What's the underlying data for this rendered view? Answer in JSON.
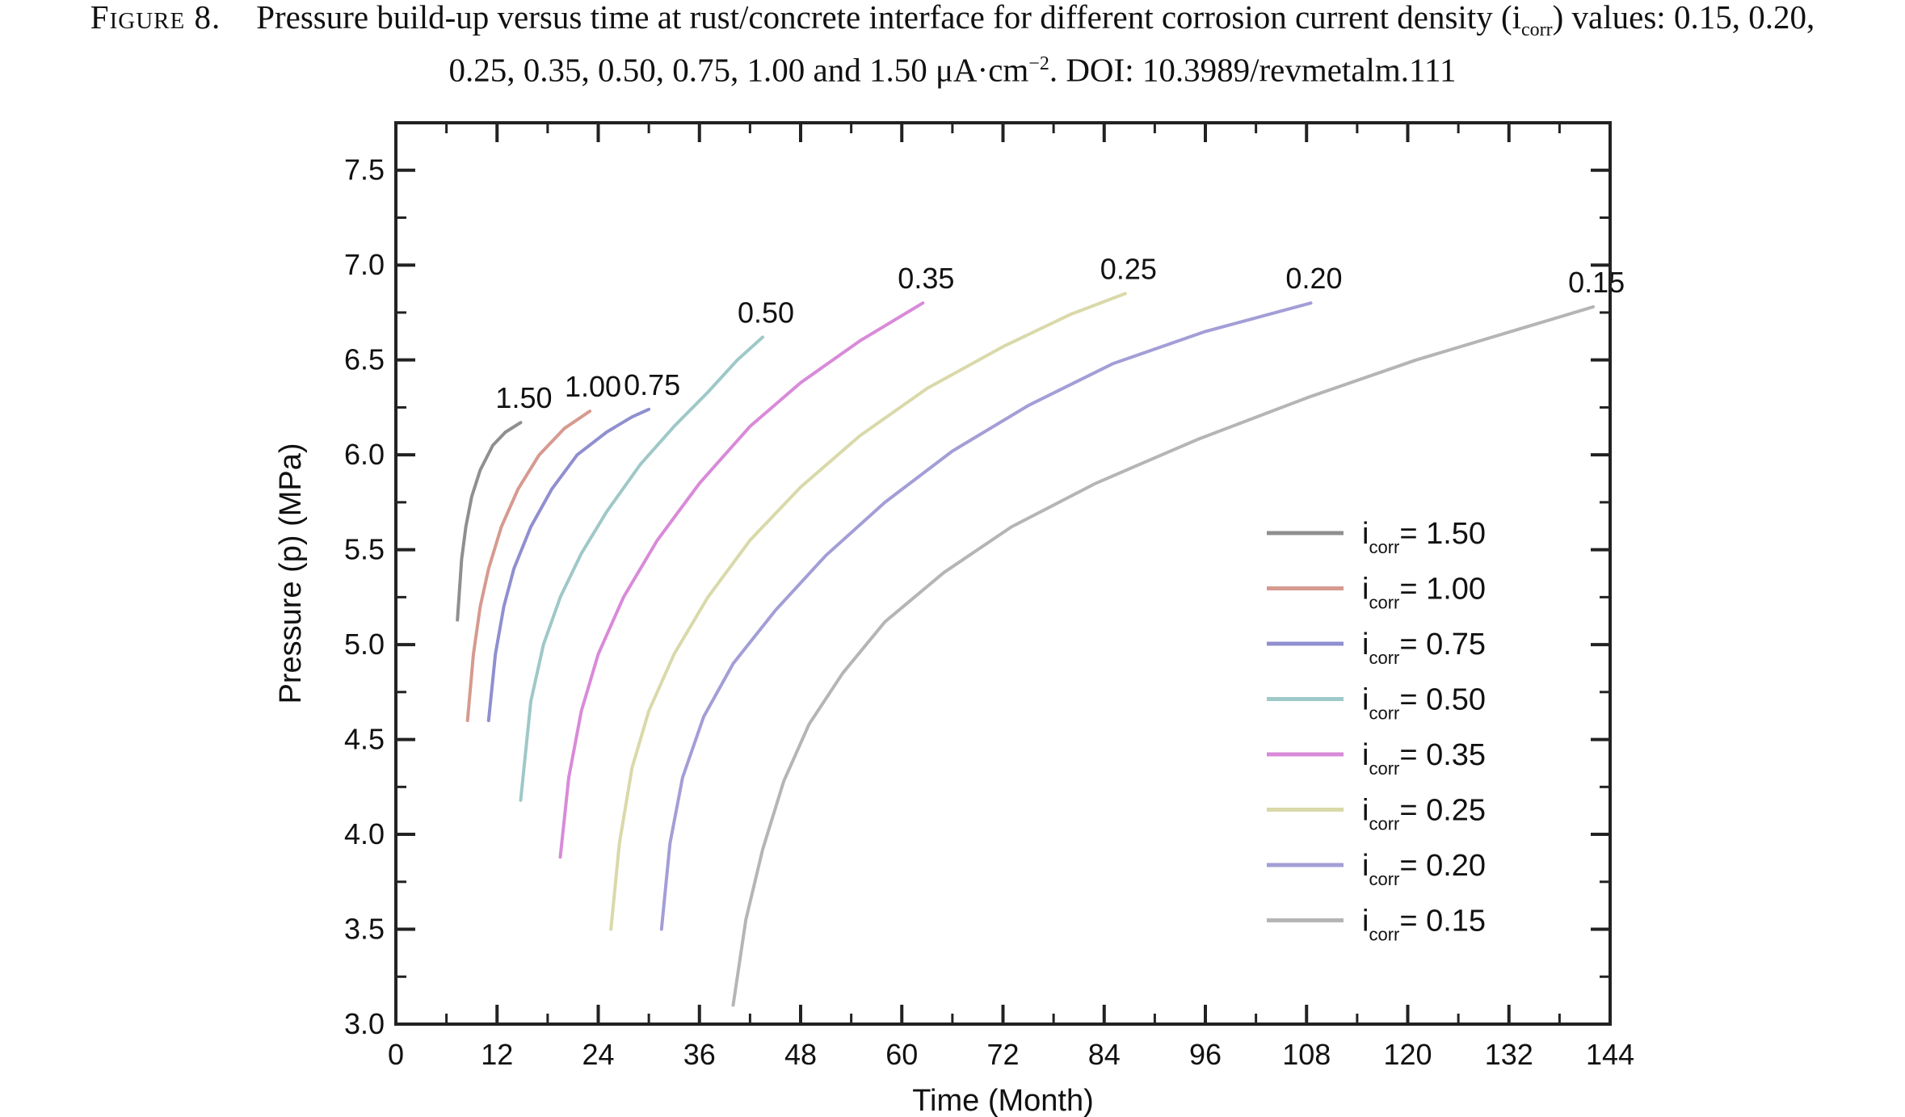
{
  "caption": {
    "figure_label": "Figure 8.",
    "line1": "Pressure build-up versus time at rust/concrete interface for different corrosion current density (i",
    "line1_sub": "corr",
    "line1_end": ") values: 0.15, 0.20,",
    "line2_start": "0.25, 0.35, 0.50, 0.75, 1.00 and 1.50 μA·cm",
    "line2_sup": "−2",
    "line2_end": ". DOI: 10.3989/revmetalm.111"
  },
  "chart_data": {
    "type": "line",
    "xlabel": "Time (Month)",
    "ylabel": "Pressure (p) (MPa)",
    "xlim": [
      0,
      144
    ],
    "ylim": [
      3.0,
      7.75
    ],
    "xticks": [
      0,
      12,
      24,
      36,
      48,
      60,
      72,
      84,
      96,
      108,
      120,
      132,
      144
    ],
    "xtick_labels": [
      "0",
      "12",
      "24",
      "36",
      "48",
      "60",
      "72",
      "84",
      "96",
      "108",
      "120",
      "132",
      "144"
    ],
    "yticks": [
      3.0,
      3.5,
      4.0,
      4.5,
      5.0,
      5.5,
      6.0,
      6.5,
      7.0,
      7.5
    ],
    "ytick_labels": [
      "3.0",
      "3.5",
      "4.0",
      "4.5",
      "5.0",
      "5.5",
      "6.0",
      "6.5",
      "7.0",
      "7.5"
    ],
    "grid": false,
    "legend_position": "right",
    "legend_prefix": "i",
    "legend_sub": "corr",
    "series": [
      {
        "name": "1.50",
        "end_label": "1.50",
        "color": "#8f8f8f",
        "x": [
          7.3,
          7.8,
          8.3,
          9.0,
          10.0,
          11.5,
          13.0,
          14.8
        ],
        "y": [
          5.13,
          5.45,
          5.62,
          5.78,
          5.92,
          6.05,
          6.12,
          6.17
        ]
      },
      {
        "name": "1.00",
        "end_label": "1.00",
        "color": "#d69a8f",
        "x": [
          8.5,
          9.2,
          10.0,
          11.0,
          12.5,
          14.5,
          17.0,
          20.0,
          23.0
        ],
        "y": [
          4.6,
          4.95,
          5.2,
          5.4,
          5.62,
          5.82,
          6.0,
          6.14,
          6.23
        ]
      },
      {
        "name": "0.75",
        "end_label": "0.75",
        "color": "#8f8fd0",
        "x": [
          11.0,
          11.8,
          12.8,
          14.0,
          16.0,
          18.5,
          21.5,
          25.0,
          28.0,
          30.0
        ],
        "y": [
          4.6,
          4.95,
          5.2,
          5.4,
          5.62,
          5.82,
          6.0,
          6.12,
          6.2,
          6.24
        ]
      },
      {
        "name": "0.50",
        "end_label": "0.50",
        "color": "#9fc8c8",
        "x": [
          14.8,
          16.0,
          17.5,
          19.5,
          22.0,
          25.0,
          29.0,
          33.0,
          37.0,
          40.5,
          43.5
        ],
        "y": [
          4.18,
          4.7,
          5.0,
          5.25,
          5.48,
          5.7,
          5.95,
          6.15,
          6.33,
          6.5,
          6.62
        ]
      },
      {
        "name": "0.35",
        "end_label": "0.35",
        "color": "#d98ad9",
        "x": [
          19.5,
          20.5,
          22.0,
          24.0,
          27.0,
          31.0,
          36.0,
          42.0,
          48.0,
          55.0,
          62.5
        ],
        "y": [
          3.88,
          4.3,
          4.65,
          4.95,
          5.25,
          5.55,
          5.85,
          6.15,
          6.38,
          6.6,
          6.8
        ]
      },
      {
        "name": "0.25",
        "end_label": "0.25",
        "color": "#d9d9aa",
        "x": [
          25.5,
          26.5,
          28.0,
          30.0,
          33.0,
          37.0,
          42.0,
          48.0,
          55.0,
          63.0,
          72.0,
          80.0,
          86.5
        ],
        "y": [
          3.5,
          3.95,
          4.35,
          4.65,
          4.95,
          5.25,
          5.55,
          5.83,
          6.1,
          6.35,
          6.57,
          6.74,
          6.85
        ]
      },
      {
        "name": "0.20",
        "end_label": "0.20",
        "color": "#a39ed6",
        "x": [
          31.5,
          32.5,
          34.0,
          36.5,
          40.0,
          45.0,
          51.0,
          58.0,
          66.0,
          75.0,
          85.0,
          96.0,
          108.5
        ],
        "y": [
          3.5,
          3.95,
          4.3,
          4.62,
          4.9,
          5.18,
          5.47,
          5.75,
          6.02,
          6.26,
          6.48,
          6.65,
          6.8
        ]
      },
      {
        "name": "0.15",
        "end_label": "0.15",
        "color": "#b5b5b5",
        "x": [
          40.0,
          41.5,
          43.5,
          46.0,
          49.0,
          53.0,
          58.0,
          65.0,
          73.0,
          83.0,
          95.0,
          108.0,
          121.0,
          133.0,
          142.0
        ],
        "y": [
          3.1,
          3.55,
          3.92,
          4.28,
          4.58,
          4.85,
          5.12,
          5.38,
          5.62,
          5.85,
          6.08,
          6.3,
          6.5,
          6.66,
          6.78
        ]
      }
    ]
  }
}
